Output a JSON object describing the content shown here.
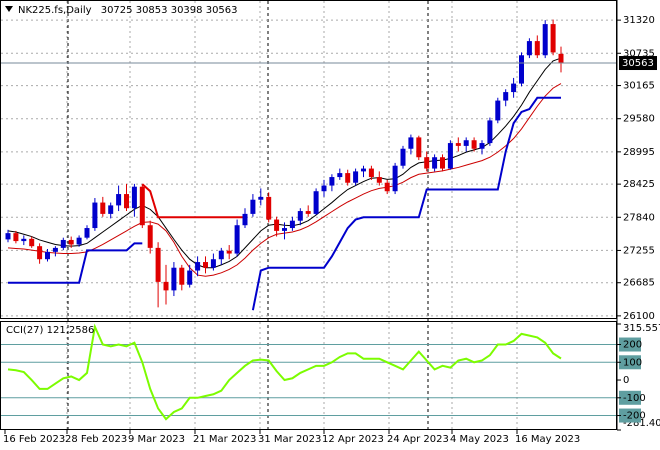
{
  "chart_data": [
    {
      "type": "candlestick",
      "title": "NK225.fs,Daily",
      "x_labels": [
        "16 Feb 2023",
        "28 Feb 2023",
        "9 Mar 2023",
        "21 Mar 2023",
        "31 Mar 2023",
        "12 Apr 2023",
        "24 Apr 2023",
        "4 May 2023",
        "16 May 2023"
      ],
      "open": [
        27450,
        27560,
        27420,
        27460,
        27330,
        27100,
        27230,
        27300,
        27440,
        27360,
        27480,
        27650,
        28100,
        27900,
        28050,
        28250,
        28000,
        28380,
        27700,
        27300,
        26700,
        26550,
        26950,
        26650,
        26900,
        27050,
        26950,
        27100,
        27250,
        27200,
        27700,
        27900,
        28150,
        28200,
        27800,
        27600,
        27650,
        27780,
        27950,
        27900,
        28300,
        28400,
        28550,
        28620,
        28450,
        28650,
        28700,
        28550,
        28450,
        28300,
        28750,
        29050,
        29250,
        28900,
        28700,
        28900,
        28700,
        29150,
        29100,
        29200,
        29050,
        29150,
        29550,
        29900,
        30050,
        30200,
        30700,
        30950,
        30700,
        31250,
        30725
      ],
      "high": [
        27620,
        27600,
        27520,
        27500,
        27380,
        27280,
        27330,
        27480,
        27500,
        27520,
        27700,
        28180,
        28200,
        28100,
        28400,
        28430,
        28430,
        28420,
        27780,
        27400,
        27000,
        27050,
        27000,
        27000,
        27150,
        27150,
        27200,
        27300,
        27350,
        27800,
        28000,
        28250,
        28350,
        28280,
        27850,
        27750,
        27850,
        28000,
        28050,
        28350,
        28500,
        28600,
        28700,
        28680,
        28700,
        28750,
        28750,
        28650,
        28500,
        28800,
        29100,
        29300,
        29280,
        29000,
        28950,
        28950,
        29200,
        29250,
        29250,
        29250,
        29200,
        29600,
        29950,
        30100,
        30300,
        30750,
        31000,
        31050,
        31320,
        31330,
        30853
      ],
      "low": [
        27400,
        27380,
        27350,
        27300,
        27020,
        27060,
        27150,
        27260,
        27300,
        27320,
        27450,
        27600,
        27850,
        27820,
        27950,
        27950,
        27850,
        27650,
        27200,
        26250,
        26300,
        26450,
        26550,
        26600,
        26800,
        26850,
        26900,
        27000,
        27100,
        27150,
        27650,
        27850,
        28050,
        27750,
        27500,
        27450,
        27600,
        27700,
        27850,
        27880,
        28200,
        28300,
        28500,
        28400,
        28400,
        28550,
        28500,
        28400,
        28250,
        28250,
        28700,
        28950,
        28850,
        28650,
        28650,
        28650,
        28680,
        29000,
        29000,
        29000,
        28950,
        29100,
        29500,
        29800,
        29950,
        30150,
        30650,
        30650,
        30650,
        30700,
        30398
      ],
      "close": [
        27560,
        27420,
        27460,
        27330,
        27100,
        27230,
        27300,
        27440,
        27360,
        27480,
        27650,
        28100,
        27900,
        28050,
        28250,
        28000,
        28380,
        27700,
        27300,
        26700,
        26550,
        26950,
        26650,
        26900,
        27050,
        26950,
        27100,
        27250,
        27200,
        27700,
        27900,
        28150,
        28200,
        27800,
        27600,
        27650,
        27780,
        27950,
        27900,
        28300,
        28400,
        28550,
        28620,
        28450,
        28650,
        28700,
        28550,
        28450,
        28300,
        28750,
        29050,
        29250,
        28900,
        28700,
        28900,
        28700,
        29150,
        29100,
        29200,
        29050,
        29150,
        29550,
        29900,
        30050,
        30200,
        30700,
        30950,
        30700,
        31250,
        30750,
        30563
      ],
      "up_color": "#0000cc",
      "down_color": "#e00000",
      "lines": [
        {
          "color": "#000000",
          "values": [
            27600,
            27580,
            27540,
            27500,
            27440,
            27400,
            27360,
            27340,
            27330,
            27340,
            27380,
            27480,
            27580,
            27680,
            27780,
            27880,
            27980,
            28050,
            27980,
            27850,
            27650,
            27450,
            27260,
            27100,
            27000,
            26950,
            26950,
            27000,
            27060,
            27150,
            27300,
            27450,
            27600,
            27700,
            27720,
            27700,
            27690,
            27720,
            27780,
            27880,
            27990,
            28100,
            28220,
            28330,
            28400,
            28470,
            28530,
            28540,
            28510,
            28520,
            28600,
            28720,
            28800,
            28820,
            28840,
            28850,
            28880,
            28930,
            28990,
            29030,
            29070,
            29160,
            29300,
            29450,
            29620,
            29820,
            30050,
            30250,
            30450,
            30600,
            30650
          ]
        },
        {
          "color": "#cc0000",
          "values": [
            27300,
            27290,
            27280,
            27260,
            27240,
            27220,
            27210,
            27200,
            27200,
            27210,
            27230,
            27290,
            27360,
            27440,
            27520,
            27600,
            27680,
            27750,
            27760,
            27720,
            27600,
            27400,
            27150,
            26950,
            26820,
            26800,
            26820,
            26860,
            26920,
            27000,
            27120,
            27260,
            27380,
            27480,
            27540,
            27560,
            27580,
            27620,
            27680,
            27760,
            27850,
            27940,
            28030,
            28110,
            28180,
            28250,
            28310,
            28350,
            28370,
            28400,
            28460,
            28540,
            28600,
            28620,
            28640,
            28660,
            28690,
            28720,
            28760,
            28800,
            28840,
            28900,
            28990,
            29100,
            29230,
            29400,
            29600,
            29800,
            29980,
            30120,
            30200
          ]
        },
        {
          "color": "#0000cc",
          "line_width": 2,
          "values": [
            26685,
            26685,
            26685,
            26685,
            26685,
            26685,
            26685,
            26685,
            26685,
            26685,
            27255,
            27255,
            27255,
            27255,
            27255,
            27255,
            27380,
            27380,
            null,
            null,
            null,
            null,
            null,
            null,
            null,
            null,
            null,
            null,
            null,
            null,
            null,
            26200,
            26900,
            26950,
            26950,
            26950,
            26950,
            26950,
            26950,
            26950,
            26950,
            27150,
            27400,
            27650,
            27800,
            27840,
            27840,
            27840,
            27840,
            27840,
            27840,
            27840,
            27840,
            28330,
            28330,
            28330,
            28330,
            28330,
            28330,
            28330,
            28330,
            28330,
            28330,
            29000,
            29500,
            29700,
            29750,
            29950,
            29950,
            29950,
            29950
          ]
        },
        {
          "color": "#e00000",
          "line_width": 2,
          "values": [
            null,
            null,
            null,
            null,
            null,
            null,
            null,
            null,
            null,
            null,
            null,
            null,
            null,
            null,
            null,
            null,
            null,
            28425,
            28300,
            27840,
            27840,
            27840,
            27840,
            27840,
            27840,
            27840,
            27840,
            27840,
            27840,
            27840,
            27840,
            null,
            null,
            null,
            null,
            null,
            null,
            null,
            null,
            null,
            null,
            null,
            null,
            null,
            null,
            null,
            null,
            null,
            null,
            null,
            null,
            null,
            null,
            null,
            null,
            null,
            null,
            null,
            null,
            null,
            null,
            null,
            null,
            null,
            null,
            null,
            null,
            null,
            null,
            null,
            null
          ]
        }
      ],
      "ylim": [
        26080,
        31640
      ],
      "yticks": [
        26100,
        26685,
        27255,
        27840,
        28425,
        28995,
        29580,
        30165,
        30735,
        31320
      ],
      "grid": true
    },
    {
      "type": "line",
      "title": "CCI(27)",
      "values": [
        60,
        55,
        45,
        0,
        -50,
        -50,
        -20,
        10,
        20,
        0,
        40,
        300,
        200,
        190,
        200,
        190,
        210,
        100,
        -50,
        -160,
        -220,
        -180,
        -160,
        -100,
        -100,
        -90,
        -80,
        -60,
        0,
        40,
        80,
        110,
        115,
        110,
        50,
        0,
        10,
        40,
        60,
        80,
        80,
        100,
        130,
        150,
        150,
        120,
        120,
        120,
        100,
        80,
        60,
        110,
        160,
        110,
        60,
        80,
        70,
        110,
        120,
        100,
        110,
        140,
        200,
        200,
        220,
        260,
        250,
        240,
        210,
        150,
        121.2586
      ],
      "color": "#7cfc00",
      "levels": [
        200,
        100,
        -100,
        -200
      ],
      "level_color": "#5f9ea0",
      "ylim": [
        -281.4073,
        315.5575
      ],
      "yticks": [
        -281.4073,
        -200,
        -100,
        0,
        100,
        200,
        315.5575
      ]
    }
  ]
}
